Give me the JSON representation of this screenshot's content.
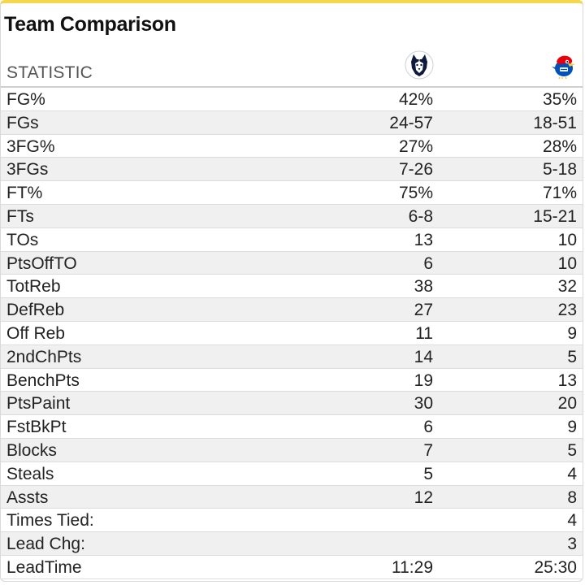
{
  "title": "Team Comparison",
  "header": {
    "label": "STATISTIC",
    "team_a_logo": "uconn-husky-logo-icon",
    "team_b_logo": "kansas-jayhawk-logo-icon"
  },
  "colors": {
    "top_accent": "#f5d74e",
    "row_alt": "#f0f0f0",
    "uconn_navy": "#0e1a3b",
    "ku_blue": "#0051ba",
    "ku_red": "#e8000d",
    "ku_yellow": "#ffc82d"
  },
  "rows": [
    {
      "stat": "FG%",
      "a": "42%",
      "b": "35%"
    },
    {
      "stat": "FGs",
      "a": "24-57",
      "b": "18-51"
    },
    {
      "stat": "3FG%",
      "a": "27%",
      "b": "28%"
    },
    {
      "stat": "3FGs",
      "a": "7-26",
      "b": "5-18"
    },
    {
      "stat": "FT%",
      "a": "75%",
      "b": "71%"
    },
    {
      "stat": "FTs",
      "a": "6-8",
      "b": "15-21"
    },
    {
      "stat": "TOs",
      "a": "13",
      "b": "10"
    },
    {
      "stat": "PtsOffTO",
      "a": "6",
      "b": "10"
    },
    {
      "stat": "TotReb",
      "a": "38",
      "b": "32"
    },
    {
      "stat": "DefReb",
      "a": "27",
      "b": "23"
    },
    {
      "stat": "Off Reb",
      "a": "11",
      "b": "9"
    },
    {
      "stat": "2ndChPts",
      "a": "14",
      "b": "5"
    },
    {
      "stat": "BenchPts",
      "a": "19",
      "b": "13"
    },
    {
      "stat": "PtsPaint",
      "a": "30",
      "b": "20"
    },
    {
      "stat": "FstBkPt",
      "a": "6",
      "b": "9"
    },
    {
      "stat": "Blocks",
      "a": "7",
      "b": "5"
    },
    {
      "stat": "Steals",
      "a": "5",
      "b": "4"
    },
    {
      "stat": "Assts",
      "a": "12",
      "b": "8"
    },
    {
      "stat": "Times Tied:",
      "a": "",
      "b": "4"
    },
    {
      "stat": "Lead Chg:",
      "a": "",
      "b": "3"
    },
    {
      "stat": "LeadTime",
      "a": "11:29",
      "b": "25:30"
    }
  ]
}
